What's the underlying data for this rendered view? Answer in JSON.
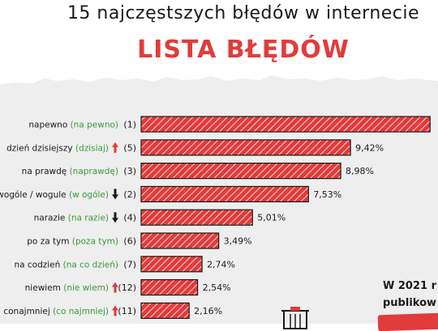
{
  "header": {
    "title": "15 najczęstszych błędów w internecie",
    "subtitle": "LISTA BŁĘDÓW"
  },
  "side_note": {
    "line1": "W 2021 r",
    "line2": "publikow"
  },
  "colors": {
    "bar": "#e23b3b",
    "correct_text": "#3a9a3a",
    "arrow_up": "#e23b3b",
    "arrow_down": "#1a1a1a",
    "text": "#1a1a1a",
    "background_band": "#eeeeee"
  },
  "chart_data": {
    "type": "bar",
    "orientation": "horizontal",
    "xlim": [
      0,
      13
    ],
    "rows": [
      {
        "wrong": "napewno",
        "correct": "(na pewno)",
        "trend": "none",
        "rank": "(1)",
        "value": null,
        "label": ""
      },
      {
        "wrong": "dzień dzisiejszy",
        "correct": "(dzisiaj)",
        "trend": "up",
        "rank": "(5)",
        "value": 9.42,
        "label": "9,42%"
      },
      {
        "wrong": "na prawdę",
        "correct": "(naprawdę)",
        "trend": "none",
        "rank": "(3)",
        "value": 8.98,
        "label": "8,98%"
      },
      {
        "wrong": "wogóle / wogule",
        "correct": "(w ogóle)",
        "trend": "down",
        "rank": "(2)",
        "value": 7.53,
        "label": "7,53%"
      },
      {
        "wrong": "narazie",
        "correct": "(na razie)",
        "trend": "down",
        "rank": "(4)",
        "value": 5.01,
        "label": "5,01%"
      },
      {
        "wrong": "po za tym",
        "correct": "(poza tym)",
        "trend": "none",
        "rank": "(6)",
        "value": 3.49,
        "label": "3,49%"
      },
      {
        "wrong": "na codzień",
        "correct": "(na co dzień)",
        "trend": "none",
        "rank": "(7)",
        "value": 2.74,
        "label": "2,74%"
      },
      {
        "wrong": "niewiem",
        "correct": "(nie wiem)",
        "trend": "up",
        "rank": "(12)",
        "value": 2.54,
        "label": "2,54%"
      },
      {
        "wrong": "conajmniej",
        "correct": "(co najmniej)",
        "trend": "up",
        "rank": "(11)",
        "value": 2.16,
        "label": "2,16%"
      }
    ]
  }
}
